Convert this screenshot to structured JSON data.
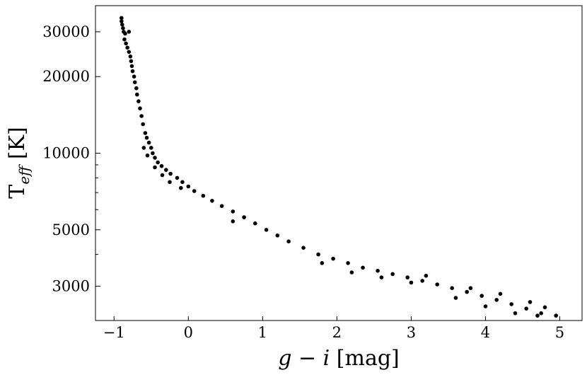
{
  "chart_data": {
    "type": "scatter",
    "title": "",
    "xlabel": {
      "italic": "g − i",
      "unit": " [mag]"
    },
    "ylabel": {
      "main": "T",
      "sub": "eff",
      "unit": " [K]"
    },
    "xlim": [
      -1.25,
      5.3
    ],
    "ylim": [
      2200,
      38000
    ],
    "yscale": "log",
    "grid": false,
    "x_ticks": [
      -1,
      0,
      1,
      2,
      3,
      4,
      5
    ],
    "x_tick_labels": [
      "−1",
      "0",
      "1",
      "2",
      "3",
      "4",
      "5"
    ],
    "y_ticks": [
      3000,
      5000,
      10000,
      20000,
      30000
    ],
    "y_tick_labels": [
      "3000",
      "5000",
      "10000",
      "20000",
      "30000"
    ],
    "y_minor_ticks": [
      4000,
      6000,
      7000,
      8000,
      9000
    ],
    "marker_color": "#000000",
    "series": [
      {
        "values": [
          [
            -0.9,
            34000
          ],
          [
            -0.9,
            33000
          ],
          [
            -0.89,
            32000
          ],
          [
            -0.88,
            31000
          ],
          [
            -0.87,
            30000
          ],
          [
            -0.86,
            28000
          ],
          [
            -0.84,
            27000
          ],
          [
            -0.82,
            26000
          ],
          [
            -0.8,
            25000
          ],
          [
            -0.78,
            24000
          ],
          [
            -0.77,
            23000
          ],
          [
            -0.76,
            22000
          ],
          [
            -0.75,
            21000
          ],
          [
            -0.73,
            20000
          ],
          [
            -0.72,
            19000
          ],
          [
            -0.7,
            18000
          ],
          [
            -0.69,
            17000
          ],
          [
            -0.67,
            16000
          ],
          [
            -0.65,
            15000
          ],
          [
            -0.63,
            14000
          ],
          [
            -0.61,
            13000
          ],
          [
            -0.58,
            12000
          ],
          [
            -0.56,
            11500
          ],
          [
            -0.53,
            11000
          ],
          [
            -0.5,
            10500
          ],
          [
            -0.48,
            10000
          ],
          [
            -0.45,
            9600
          ],
          [
            -0.41,
            9200
          ],
          [
            -0.36,
            8900
          ],
          [
            -0.3,
            8600
          ],
          [
            -0.24,
            8300
          ],
          [
            -0.15,
            8000
          ],
          [
            -0.08,
            7700
          ],
          [
            0.0,
            7400
          ],
          [
            0.08,
            7100
          ],
          [
            0.2,
            6800
          ],
          [
            0.32,
            6500
          ],
          [
            0.45,
            6200
          ],
          [
            0.6,
            5900
          ],
          [
            0.75,
            5600
          ],
          [
            0.9,
            5300
          ],
          [
            1.05,
            5000
          ],
          [
            1.2,
            4750
          ],
          [
            1.35,
            4500
          ],
          [
            1.55,
            4250
          ],
          [
            1.75,
            4000
          ],
          [
            1.95,
            3850
          ],
          [
            2.15,
            3700
          ],
          [
            2.35,
            3550
          ],
          [
            2.55,
            3450
          ],
          [
            2.75,
            3350
          ],
          [
            2.95,
            3250
          ],
          [
            3.15,
            3150
          ],
          [
            3.35,
            3050
          ],
          [
            3.55,
            2950
          ],
          [
            3.75,
            2850
          ],
          [
            3.95,
            2750
          ],
          [
            4.15,
            2650
          ],
          [
            4.35,
            2550
          ],
          [
            4.55,
            2450
          ],
          [
            4.75,
            2350
          ],
          [
            4.95,
            2300
          ],
          [
            -0.85,
            29500
          ],
          [
            -0.8,
            30000
          ],
          [
            0.6,
            5400
          ],
          [
            1.8,
            3700
          ],
          [
            2.6,
            3250
          ],
          [
            3.2,
            3300
          ],
          [
            3.8,
            2950
          ],
          [
            4.2,
            2800
          ],
          [
            4.6,
            2600
          ],
          [
            4.8,
            2480
          ],
          [
            2.2,
            3400
          ],
          [
            3.0,
            3100
          ],
          [
            3.6,
            2700
          ],
          [
            4.0,
            2500
          ],
          [
            4.4,
            2350
          ],
          [
            4.7,
            2300
          ],
          [
            -0.6,
            10500
          ],
          [
            -0.55,
            9800
          ],
          [
            -0.45,
            8800
          ],
          [
            -0.35,
            8200
          ],
          [
            -0.25,
            7700
          ],
          [
            -0.1,
            7300
          ]
        ]
      }
    ]
  }
}
